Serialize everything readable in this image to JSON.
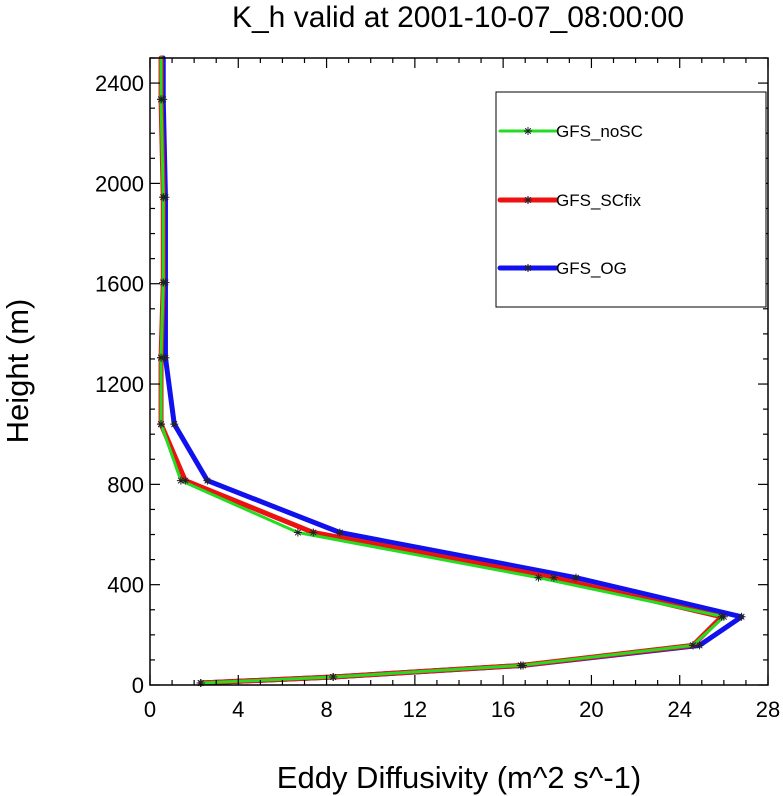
{
  "chart_data": {
    "type": "line",
    "title": "K_h valid at 2001-10-07_08:00:00",
    "xlabel": "Eddy Diffusivity (m^2 s^-1)",
    "ylabel": "Height (m)",
    "xlim": [
      0,
      28
    ],
    "ylim": [
      0,
      2500
    ],
    "xticks": [
      0,
      4,
      8,
      12,
      16,
      20,
      24,
      28
    ],
    "yticks": [
      0,
      400,
      800,
      1200,
      1600,
      2000,
      2400
    ],
    "grid": false,
    "legend_position": "top-right",
    "series": [
      {
        "name": "GFS_noSC",
        "color": "#22dd22",
        "points": [
          [
            2.3,
            8
          ],
          [
            8.3,
            32
          ],
          [
            16.8,
            78
          ],
          [
            24.6,
            158
          ],
          [
            26.0,
            272
          ],
          [
            17.6,
            428
          ],
          [
            6.7,
            608
          ],
          [
            1.4,
            815
          ],
          [
            0.5,
            1040
          ],
          [
            0.5,
            1305
          ],
          [
            0.6,
            1605
          ],
          [
            0.6,
            1945
          ],
          [
            0.5,
            2335
          ],
          [
            0.5,
            2500
          ]
        ]
      },
      {
        "name": "GFS_SCfix",
        "color": "#ee1111",
        "points": [
          [
            2.3,
            8
          ],
          [
            8.3,
            32
          ],
          [
            16.8,
            78
          ],
          [
            24.6,
            158
          ],
          [
            25.9,
            272
          ],
          [
            18.3,
            428
          ],
          [
            7.4,
            608
          ],
          [
            1.6,
            815
          ],
          [
            0.5,
            1040
          ],
          [
            0.5,
            1305
          ],
          [
            0.6,
            1605
          ],
          [
            0.6,
            1945
          ],
          [
            0.5,
            2335
          ],
          [
            0.5,
            2500
          ]
        ]
      },
      {
        "name": "GFS_OG",
        "color": "#1111ee",
        "points": [
          [
            2.3,
            8
          ],
          [
            8.3,
            32
          ],
          [
            16.9,
            78
          ],
          [
            24.9,
            158
          ],
          [
            26.8,
            272
          ],
          [
            19.3,
            428
          ],
          [
            8.6,
            608
          ],
          [
            2.6,
            815
          ],
          [
            1.1,
            1040
          ],
          [
            0.7,
            1305
          ],
          [
            0.7,
            1605
          ],
          [
            0.7,
            1945
          ],
          [
            0.6,
            2335
          ],
          [
            0.6,
            2500
          ]
        ]
      }
    ]
  }
}
